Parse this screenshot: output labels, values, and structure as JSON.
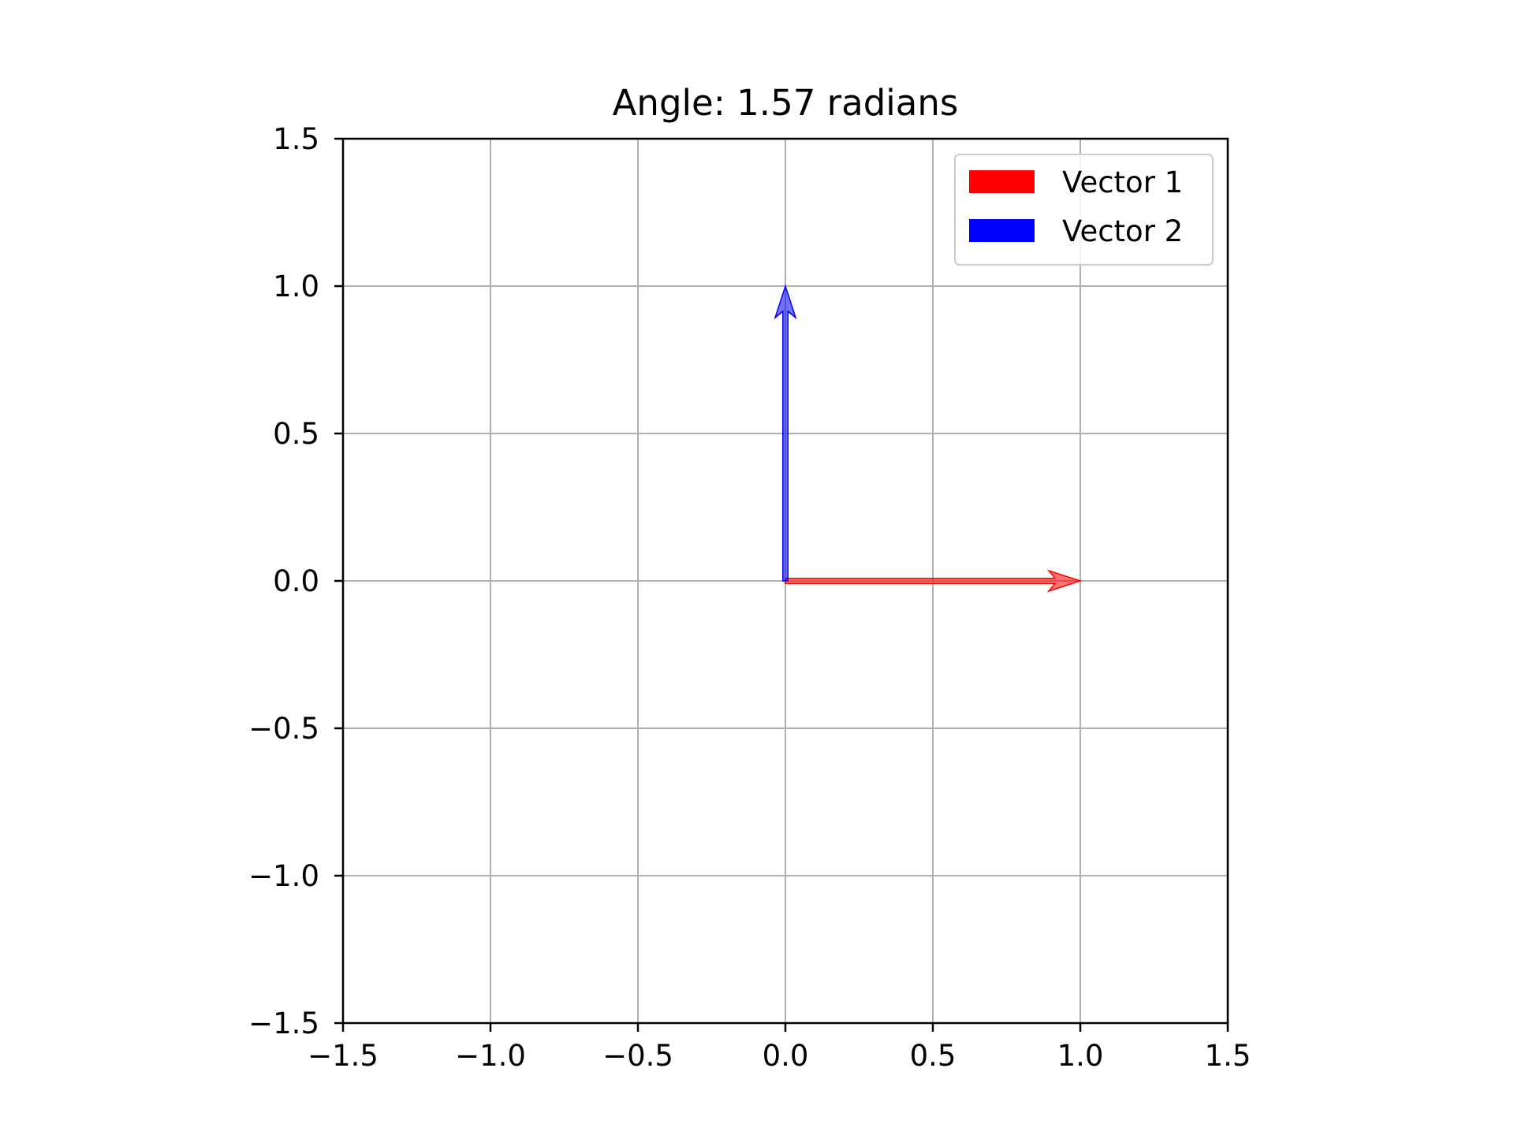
{
  "chart_data": {
    "type": "quiver",
    "title": "Angle: 1.57 radians",
    "xlabel": "",
    "ylabel": "",
    "xlim": [
      -1.5,
      1.5
    ],
    "ylim": [
      -1.5,
      1.5
    ],
    "xticks": [
      -1.5,
      -1.0,
      -0.5,
      0.0,
      0.5,
      1.0,
      1.5
    ],
    "yticks": [
      -1.5,
      -1.0,
      -0.5,
      0.0,
      0.5,
      1.0,
      1.5
    ],
    "xtick_labels": [
      "−1.5",
      "−1.0",
      "−0.5",
      "0.0",
      "0.5",
      "1.0",
      "1.5"
    ],
    "ytick_labels": [
      "−1.5",
      "−1.0",
      "−0.5",
      "0.0",
      "0.5",
      "1.0",
      "1.5"
    ],
    "grid": true,
    "aspect": "equal",
    "legend_position": "top-right",
    "series": [
      {
        "name": "Vector 1",
        "color": "#ff0000",
        "origin": [
          0,
          0
        ],
        "vector": [
          1,
          0
        ]
      },
      {
        "name": "Vector 2",
        "color": "#0000ff",
        "origin": [
          0,
          0
        ],
        "vector": [
          0,
          1
        ]
      }
    ]
  }
}
